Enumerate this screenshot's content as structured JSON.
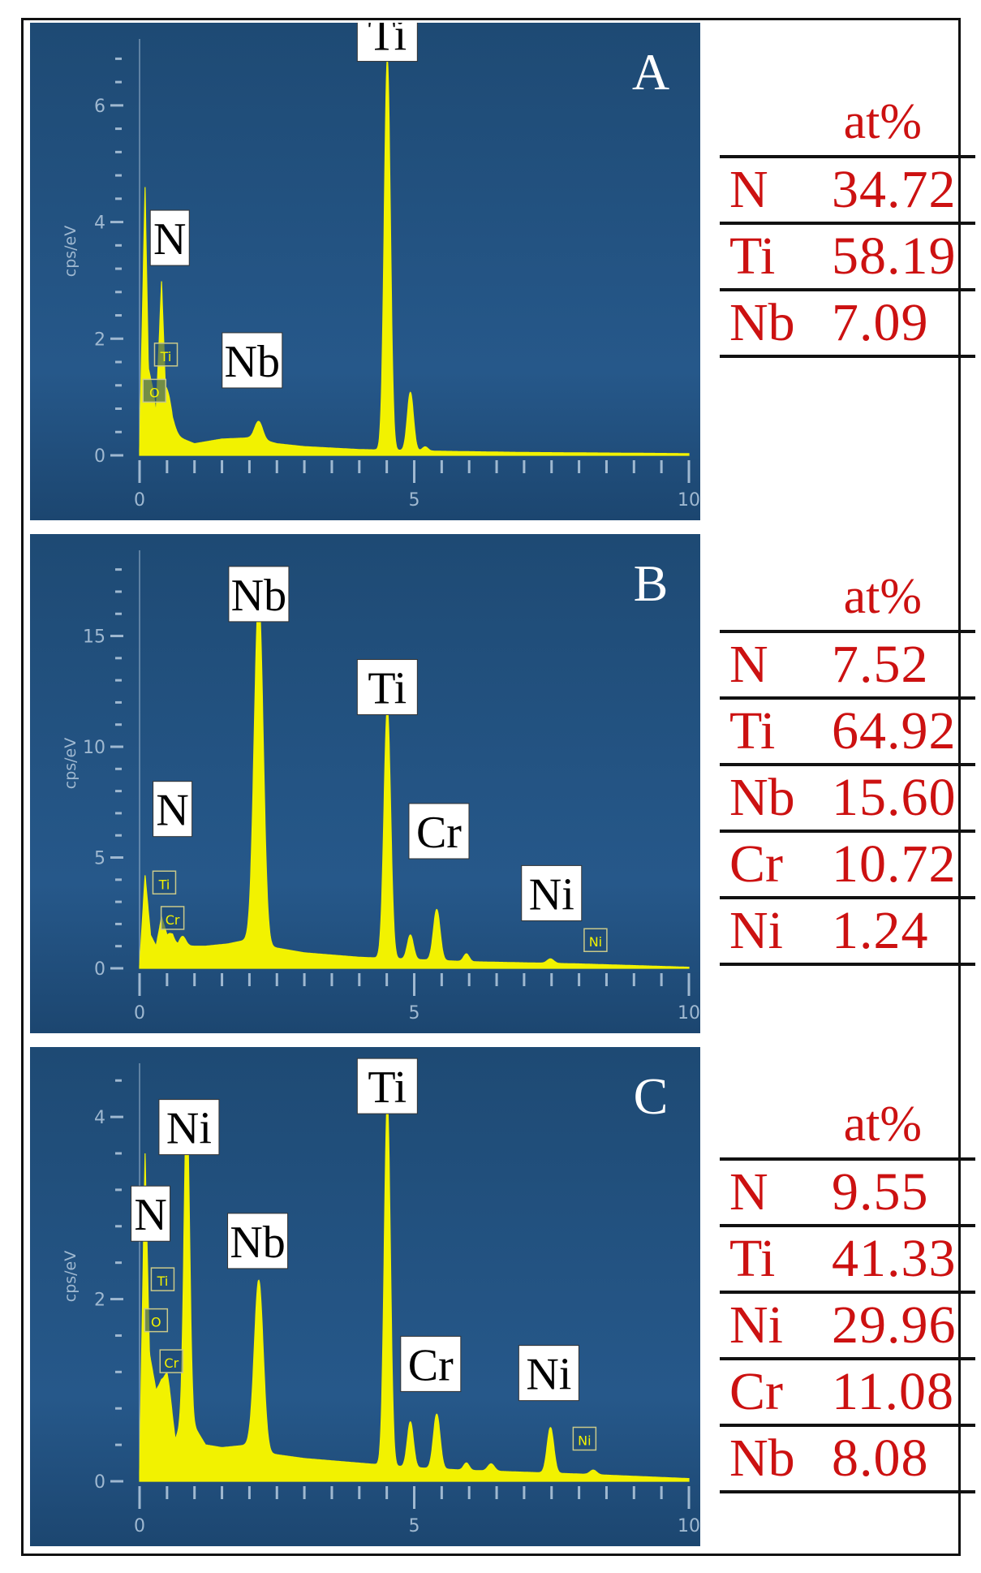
{
  "colors": {
    "panel_bg": "#1f4d78",
    "spectrum": "#f2f200",
    "axis": "#9fb8d0",
    "table_text": "#cc1111"
  },
  "panels": [
    {
      "letter": "A",
      "chart_data": {
        "type": "area",
        "ylabel": "cps/eV",
        "xlim": [
          0,
          10
        ],
        "ylim": [
          0,
          7
        ],
        "x_ticks": [
          "0",
          "5",
          "10"
        ],
        "y_ticks": [
          {
            "v": 0,
            "label": "0"
          },
          {
            "v": 2,
            "label": "2"
          },
          {
            "v": 4,
            "label": "4"
          },
          {
            "v": 6,
            "label": "6"
          }
        ],
        "baseline": [
          [
            0,
            0.1
          ],
          [
            0.1,
            4.6
          ],
          [
            0.16,
            1.5
          ],
          [
            0.25,
            1.1
          ],
          [
            0.3,
            0.7
          ],
          [
            0.4,
            2.8
          ],
          [
            0.47,
            0.8
          ],
          [
            0.6,
            0.35
          ],
          [
            1.0,
            0.2
          ],
          [
            1.5,
            0.28
          ],
          [
            2.0,
            0.3
          ],
          [
            2.1,
            0.3
          ],
          [
            2.5,
            0.2
          ],
          [
            3.0,
            0.15
          ],
          [
            4.0,
            0.1
          ],
          [
            5.5,
            0.07
          ],
          [
            7.0,
            0.05
          ],
          [
            10.0,
            0.03
          ]
        ],
        "peaks": [
          [
            0.52,
            0.45,
            0.09
          ],
          [
            2.17,
            0.3,
            0.07
          ],
          [
            4.51,
            6.7,
            0.055
          ],
          [
            4.93,
            1.0,
            0.055
          ],
          [
            5.2,
            0.07,
            0.05
          ]
        ],
        "labels": [
          {
            "text": "Ti",
            "x": 4.51,
            "y": 6.7
          },
          {
            "text": "N",
            "x": 0.55,
            "y": 3.2
          },
          {
            "text": "Nb",
            "x": 2.05,
            "y": 1.1
          }
        ],
        "markers": [
          {
            "text": "Ti",
            "x": 0.48,
            "y": 1.7
          },
          {
            "text": "O",
            "x": 0.27,
            "y": 1.08
          }
        ]
      },
      "table": {
        "header": "at%",
        "rows": [
          {
            "el": "N",
            "val": "34.72"
          },
          {
            "el": "Ti",
            "val": "58.19"
          },
          {
            "el": "Nb",
            "val": "7.09"
          }
        ]
      }
    },
    {
      "letter": "B",
      "chart_data": {
        "type": "area",
        "ylabel": "cps/eV",
        "xlim": [
          0,
          10
        ],
        "ylim": [
          0,
          18.5
        ],
        "x_ticks": [
          "0",
          "5",
          "10"
        ],
        "y_ticks": [
          {
            "v": 0,
            "label": "0"
          },
          {
            "v": 5,
            "label": "5"
          },
          {
            "v": 10,
            "label": "10"
          },
          {
            "v": 15,
            "label": "15"
          }
        ],
        "baseline": [
          [
            0,
            0.1
          ],
          [
            0.1,
            4.2
          ],
          [
            0.2,
            1.5
          ],
          [
            0.3,
            1.0
          ],
          [
            0.4,
            2.2
          ],
          [
            0.5,
            1.1
          ],
          [
            0.6,
            1.3
          ],
          [
            0.7,
            0.9
          ],
          [
            0.9,
            1.0
          ],
          [
            1.2,
            1.0
          ],
          [
            1.6,
            1.1
          ],
          [
            2.0,
            1.3
          ],
          [
            2.07,
            1.6
          ],
          [
            2.3,
            1.0
          ],
          [
            3.0,
            0.7
          ],
          [
            4.0,
            0.5
          ],
          [
            5.0,
            0.4
          ],
          [
            6.0,
            0.3
          ],
          [
            8.0,
            0.2
          ],
          [
            10.0,
            0.05
          ]
        ],
        "peaks": [
          [
            0.52,
            0.4,
            0.08
          ],
          [
            0.78,
            0.5,
            0.06
          ],
          [
            2.17,
            15.5,
            0.08
          ],
          [
            4.51,
            11.3,
            0.06
          ],
          [
            4.93,
            1.1,
            0.055
          ],
          [
            5.41,
            2.3,
            0.06
          ],
          [
            5.95,
            0.35,
            0.05
          ],
          [
            7.48,
            0.2,
            0.06
          ]
        ],
        "labels": [
          {
            "text": "Nb",
            "x": 2.17,
            "y": 15.5
          },
          {
            "text": "Ti",
            "x": 4.51,
            "y": 11.3
          },
          {
            "text": "Cr",
            "x": 5.45,
            "y": 4.8
          },
          {
            "text": "N",
            "x": 0.6,
            "y": 5.8
          },
          {
            "text": "Ni",
            "x": 7.5,
            "y": 2.0
          }
        ],
        "markers": [
          {
            "text": "Ti",
            "x": 0.45,
            "y": 3.8
          },
          {
            "text": "Cr",
            "x": 0.6,
            "y": 2.2
          },
          {
            "text": "Ni",
            "x": 8.3,
            "y": 1.2
          }
        ]
      },
      "table": {
        "header": "at%",
        "rows": [
          {
            "el": "N",
            "val": "7.52"
          },
          {
            "el": "Ti",
            "val": "64.92"
          },
          {
            "el": "Nb",
            "val": "15.60"
          },
          {
            "el": "Cr",
            "val": "10.72"
          },
          {
            "el": "Ni",
            "val": "1.24"
          }
        ]
      }
    },
    {
      "letter": "C",
      "chart_data": {
        "type": "area",
        "ylabel": "cps/eV",
        "xlim": [
          0,
          10
        ],
        "ylim": [
          0,
          4.5
        ],
        "x_ticks": [
          "0",
          "5",
          "10"
        ],
        "y_ticks": [
          {
            "v": 0,
            "label": "0"
          },
          {
            "v": 2,
            "label": "2"
          },
          {
            "v": 4,
            "label": "4"
          }
        ],
        "baseline": [
          [
            0,
            0.1
          ],
          [
            0.1,
            3.6
          ],
          [
            0.18,
            1.4
          ],
          [
            0.3,
            1.0
          ],
          [
            0.4,
            1.1
          ],
          [
            0.5,
            1.05
          ],
          [
            0.65,
            0.45
          ],
          [
            0.85,
            0.8
          ],
          [
            1.0,
            0.6
          ],
          [
            1.2,
            0.4
          ],
          [
            1.5,
            0.37
          ],
          [
            2.0,
            0.4
          ],
          [
            2.4,
            0.3
          ],
          [
            3.0,
            0.25
          ],
          [
            4.0,
            0.2
          ],
          [
            5.0,
            0.15
          ],
          [
            6.0,
            0.12
          ],
          [
            8.0,
            0.08
          ],
          [
            10.0,
            0.03
          ]
        ],
        "peaks": [
          [
            0.52,
            0.15,
            0.06
          ],
          [
            0.86,
            3.4,
            0.05
          ],
          [
            2.17,
            1.85,
            0.08
          ],
          [
            4.51,
            4.0,
            0.055
          ],
          [
            4.93,
            0.5,
            0.055
          ],
          [
            5.41,
            0.6,
            0.06
          ],
          [
            5.95,
            0.08,
            0.05
          ],
          [
            6.4,
            0.08,
            0.06
          ],
          [
            7.48,
            0.5,
            0.06
          ],
          [
            8.26,
            0.05,
            0.06
          ]
        ],
        "labels": [
          {
            "text": "Ti",
            "x": 4.51,
            "y": 4.0
          },
          {
            "text": "Ni",
            "x": 0.9,
            "y": 3.55
          },
          {
            "text": "N",
            "x": 0.2,
            "y": 2.6
          },
          {
            "text": "Nb",
            "x": 2.15,
            "y": 2.3
          },
          {
            "text": "Cr",
            "x": 5.3,
            "y": 0.95
          },
          {
            "text": "Ni",
            "x": 7.45,
            "y": 0.85
          }
        ],
        "markers": [
          {
            "text": "Ti",
            "x": 0.42,
            "y": 2.2
          },
          {
            "text": "O",
            "x": 0.3,
            "y": 1.75
          },
          {
            "text": "Cr",
            "x": 0.58,
            "y": 1.3
          },
          {
            "text": "Ni",
            "x": 8.1,
            "y": 0.45
          }
        ]
      },
      "table": {
        "header": "at%",
        "rows": [
          {
            "el": "N",
            "val": "9.55"
          },
          {
            "el": "Ti",
            "val": "41.33"
          },
          {
            "el": "Ni",
            "val": "29.96"
          },
          {
            "el": "Cr",
            "val": "11.08"
          },
          {
            "el": "Nb",
            "val": "8.08"
          }
        ]
      }
    }
  ]
}
